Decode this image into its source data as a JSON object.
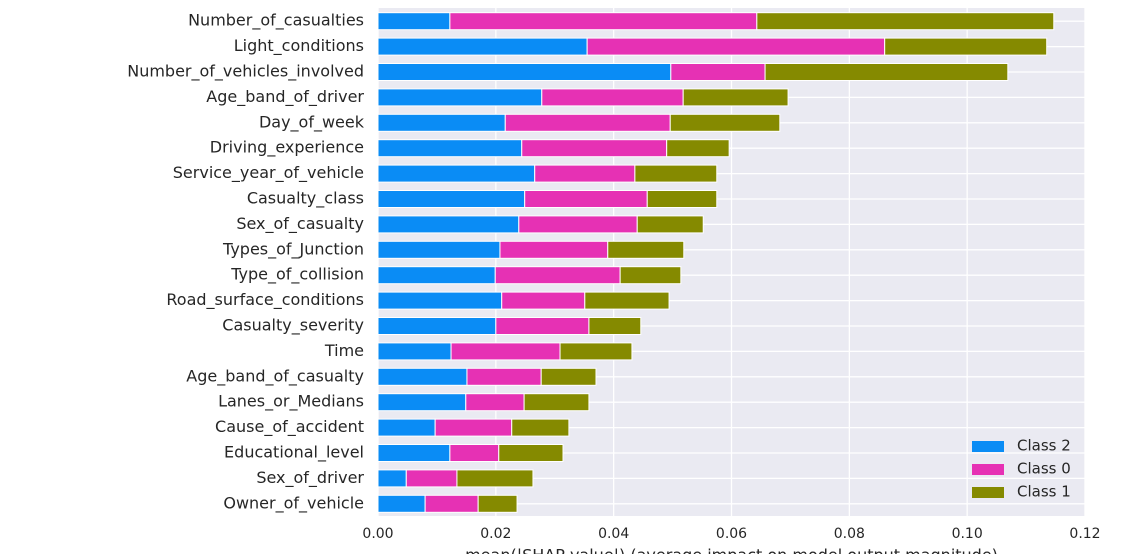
{
  "chart_data": {
    "type": "bar",
    "orientation": "horizontal",
    "stacked": true,
    "xlabel": "mean(|SHAP value|) (average impact on model output magnitude)",
    "categories": [
      "Number_of_casualties",
      "Light_conditions",
      "Number_of_vehicles_involved",
      "Age_band_of_driver",
      "Day_of_week",
      "Driving_experience",
      "Service_year_of_vehicle",
      "Casualty_class",
      "Sex_of_casualty",
      "Types_of_Junction",
      "Type_of_collision",
      "Road_surface_conditions",
      "Casualty_severity",
      "Time",
      "Age_band_of_casualty",
      "Lanes_or_Medians",
      "Cause_of_accident",
      "Educational_level",
      "Sex_of_driver",
      "Owner_of_vehicle"
    ],
    "series": [
      {
        "name": "Class 2",
        "color": "#0a8cf5",
        "values": [
          0.0122,
          0.0355,
          0.0497,
          0.0278,
          0.0216,
          0.0244,
          0.0266,
          0.0249,
          0.0239,
          0.0207,
          0.0199,
          0.021,
          0.02,
          0.0124,
          0.0151,
          0.0149,
          0.0097,
          0.0122,
          0.0048,
          0.008
        ]
      },
      {
        "name": "Class 0",
        "color": "#e631b4",
        "values": [
          0.0521,
          0.0505,
          0.016,
          0.024,
          0.028,
          0.0246,
          0.017,
          0.0208,
          0.0201,
          0.0183,
          0.0212,
          0.0141,
          0.0158,
          0.0185,
          0.0126,
          0.0099,
          0.013,
          0.0083,
          0.0086,
          0.009
        ]
      },
      {
        "name": "Class 1",
        "color": "#858a00",
        "values": [
          0.0504,
          0.0275,
          0.0412,
          0.0178,
          0.0186,
          0.0106,
          0.0139,
          0.0118,
          0.0112,
          0.0129,
          0.0103,
          0.0143,
          0.0088,
          0.0122,
          0.0093,
          0.011,
          0.0097,
          0.0109,
          0.0129,
          0.0066
        ]
      }
    ],
    "xlim": [
      0,
      0.12
    ],
    "xticks": [
      {
        "value": 0,
        "label": "0.00"
      },
      {
        "value": 0.02,
        "label": "0.02"
      },
      {
        "value": 0.04,
        "label": "0.04"
      },
      {
        "value": 0.06,
        "label": "0.06"
      },
      {
        "value": 0.08,
        "label": "0.08"
      },
      {
        "value": 0.1,
        "label": "0.10"
      },
      {
        "value": 0.12,
        "label": "0.12"
      }
    ],
    "grid": true,
    "legend_position": "lower right"
  }
}
